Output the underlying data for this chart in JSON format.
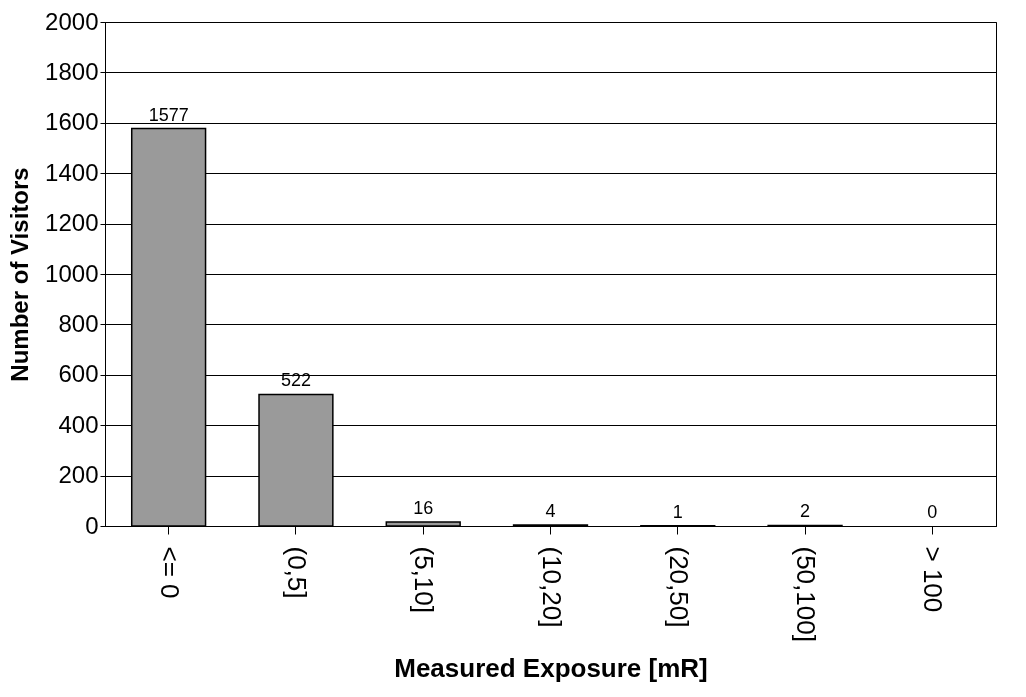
{
  "chart_data": {
    "type": "bar",
    "xlabel": "Measured Exposure [mR]",
    "ylabel": "Number of Visitors",
    "categories": [
      "<= 0",
      "(0,5]",
      "(5,10]",
      "(10,20]",
      "(20,50]",
      "(50,100]",
      "> 100"
    ],
    "values": [
      1577,
      522,
      16,
      4,
      1,
      2,
      0
    ],
    "color": "#9a9a9a",
    "ylim": [
      0,
      2000
    ],
    "yticks": [
      0,
      200,
      400,
      600,
      800,
      1000,
      1200,
      1400,
      1600,
      1800,
      2000
    ],
    "grid": "y",
    "data_labels": true
  }
}
